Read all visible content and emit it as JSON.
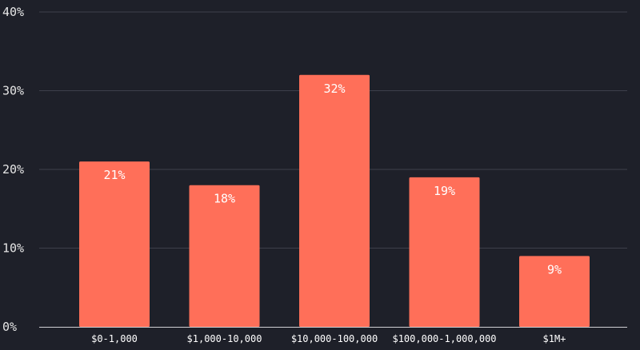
{
  "chart_data": {
    "type": "bar",
    "categories": [
      "$0-1,000",
      "$1,000-10,000",
      "$10,000-100,000",
      "$100,000-1,000,000",
      "$1M+"
    ],
    "values": [
      21,
      18,
      32,
      19,
      9
    ],
    "data_labels": [
      "21%",
      "18%",
      "32%",
      "19%",
      "9%"
    ],
    "y_ticks": [
      0,
      10,
      20,
      30,
      40
    ],
    "y_tick_labels": [
      "0%",
      "10%",
      "20%",
      "30%",
      "40%"
    ],
    "ylim": [
      0,
      40
    ],
    "grid": true,
    "title": "",
    "xlabel": "",
    "ylabel": "",
    "bar_color": "#ff6f59",
    "background_color": "#1e2029",
    "grid_color": "#3d404b",
    "text_color": "#ffffff"
  }
}
